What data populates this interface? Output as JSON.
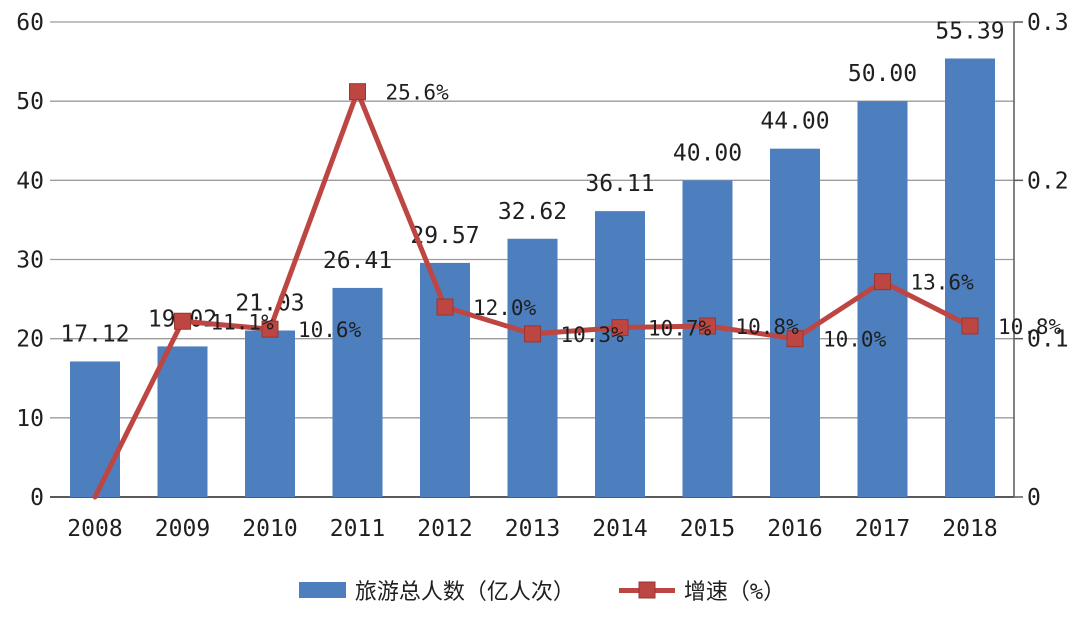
{
  "chart_data": {
    "type": "bar+line",
    "title": "",
    "categories": [
      "2008",
      "2009",
      "2010",
      "2011",
      "2012",
      "2013",
      "2014",
      "2015",
      "2016",
      "2017",
      "2018"
    ],
    "series": [
      {
        "name": "旅游总人数（亿人次）",
        "type": "bar",
        "axis": "left",
        "color": "#4d7ebd",
        "values": [
          17.12,
          19.02,
          21.03,
          26.41,
          29.57,
          32.62,
          36.11,
          40.0,
          44.0,
          50.0,
          55.39
        ],
        "labels": [
          "17.12",
          "19.02",
          "21.03",
          "26.41",
          "29.57",
          "32.62",
          "36.11",
          "40.00",
          "44.00",
          "50.00",
          "55.39"
        ]
      },
      {
        "name": "增速（%）",
        "type": "line",
        "axis": "right",
        "color": "#bd4642",
        "marker": "square",
        "values": [
          0,
          0.111,
          0.106,
          0.256,
          0.12,
          0.103,
          0.107,
          0.108,
          0.1,
          0.136,
          0.108
        ],
        "labels": [
          "",
          "11.1%",
          "10.6%",
          "25.6%",
          "12.0%",
          "10.3%",
          "10.7%",
          "10.8%",
          "10.0%",
          "13.6%",
          "10.8%"
        ]
      }
    ],
    "axes": {
      "left": {
        "min": 0,
        "max": 60,
        "ticks": [
          0,
          10,
          20,
          30,
          40,
          50,
          60
        ],
        "tick_labels": [
          "0",
          "10",
          "20",
          "30",
          "40",
          "50",
          "60"
        ]
      },
      "right": {
        "min": 0,
        "max": 0.3,
        "ticks": [
          0,
          0.1,
          0.2,
          0.3
        ],
        "tick_labels": [
          "0",
          "0.1",
          "0.2",
          "0.3"
        ]
      }
    },
    "grid": true,
    "legend_position": "bottom",
    "colors": {
      "grid": "#9c9c9c",
      "axis": "#5a5a5a",
      "text": "#1f1f1f",
      "background": "#ffffff",
      "marker_edge": "#963732"
    }
  }
}
